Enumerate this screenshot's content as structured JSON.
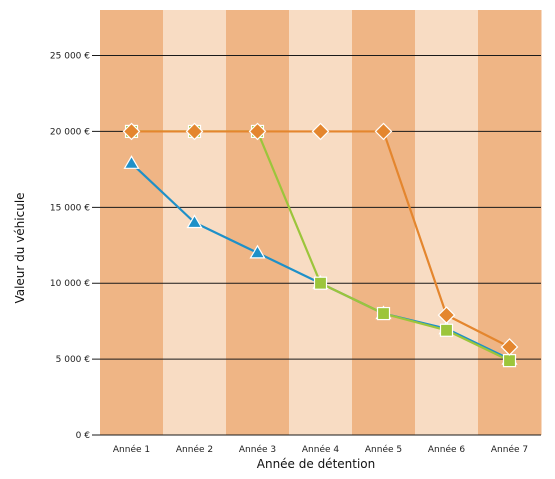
{
  "chart_data": {
    "type": "line",
    "title": "",
    "xlabel": "Année de détention",
    "ylabel": "Valeur du véhicule",
    "categories": [
      "Année 1",
      "Année 2",
      "Année 3",
      "Année 4",
      "Année 5",
      "Année 6",
      "Année 7"
    ],
    "ylim": [
      0,
      28000
    ],
    "yticks": [
      0,
      5000,
      10000,
      15000,
      20000,
      25000
    ],
    "ytick_labels": [
      "0 €",
      "5 000 €",
      "10 000 €",
      "15 000 €",
      "20 000 €",
      "25 000 €"
    ],
    "grid": "horizontal",
    "legend": "none",
    "band_colors": [
      "#efb585",
      "#f8dcc3"
    ],
    "series": [
      {
        "color": "#1e90c8",
        "marker": "triangle",
        "values": [
          17900,
          14000,
          12000,
          10000,
          8000,
          7000,
          5000
        ]
      },
      {
        "color": "#9cc53b",
        "marker": "square",
        "values": [
          20000,
          20000,
          20000,
          10000,
          8000,
          6900,
          4900
        ]
      },
      {
        "color": "#e4862e",
        "marker": "diamond",
        "values": [
          20000,
          20000,
          20000,
          20000,
          20000,
          7900,
          5800
        ]
      }
    ]
  }
}
